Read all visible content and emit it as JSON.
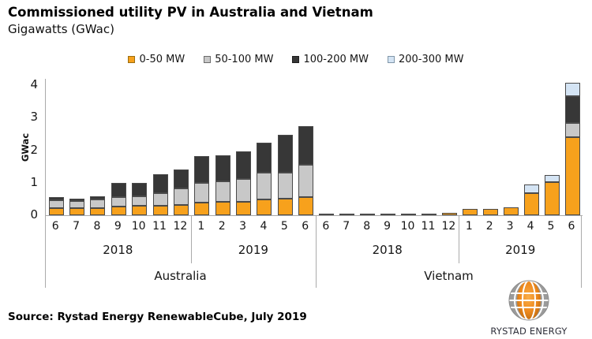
{
  "header": {
    "title": "Commissioned utility PV in Australia and Vietnam",
    "subtitle": "Gigawatts (GWac)"
  },
  "legend": {
    "items": [
      {
        "label": "0-50 MW",
        "color": "#F7A11C",
        "border": "#9a6d10"
      },
      {
        "label": "50-100 MW",
        "color": "#C8C8C8",
        "border": "#6b6b6b"
      },
      {
        "label": "100-200 MW",
        "color": "#373737",
        "border": "#1e1e1e"
      },
      {
        "label": "200-300 MW",
        "color": "#D4E4F4",
        "border": "#8096a8"
      }
    ]
  },
  "chart_data": {
    "type": "bar",
    "stacked": true,
    "title": "Commissioned utility PV in Australia and Vietnam",
    "ylabel": "GWac",
    "unit": "GWac",
    "ylim": [
      0,
      4
    ],
    "yticks": [
      0,
      1,
      2,
      3,
      4
    ],
    "grid": false,
    "legend_position": "top",
    "series": [
      "0-50 MW",
      "50-100 MW",
      "100-200 MW",
      "200-300 MW"
    ],
    "series_colors": [
      "#F7A11C",
      "#C8C8C8",
      "#373737",
      "#D4E4F4"
    ],
    "countries": [
      {
        "name": "Australia",
        "year_groups": [
          {
            "year": "2018",
            "months": [
              "6",
              "7",
              "8",
              "9",
              "10",
              "11",
              "12"
            ],
            "values": [
              [
                0.21,
                0.24,
                0.09,
                0
              ],
              [
                0.21,
                0.23,
                0.08,
                0
              ],
              [
                0.23,
                0.26,
                0.09,
                0
              ],
              [
                0.26,
                0.3,
                0.44,
                0
              ],
              [
                0.28,
                0.3,
                0.41,
                0
              ],
              [
                0.3,
                0.38,
                0.59,
                0
              ],
              [
                0.31,
                0.51,
                0.58,
                0
              ]
            ]
          },
          {
            "year": "2019",
            "months": [
              "1",
              "2",
              "3",
              "4",
              "5",
              "6"
            ],
            "values": [
              [
                0.38,
                0.61,
                0.82,
                0
              ],
              [
                0.4,
                0.64,
                0.81,
                0
              ],
              [
                0.41,
                0.7,
                0.86,
                0
              ],
              [
                0.48,
                0.82,
                0.92,
                0
              ],
              [
                0.5,
                0.81,
                1.17,
                0
              ],
              [
                0.56,
                0.99,
                1.19,
                0
              ]
            ]
          }
        ]
      },
      {
        "name": "Vietnam",
        "year_groups": [
          {
            "year": "2018",
            "months": [
              "6",
              "7",
              "8",
              "9",
              "10",
              "11",
              "12"
            ],
            "values": [
              [
                0.01,
                0,
                0,
                0
              ],
              [
                0.01,
                0,
                0,
                0
              ],
              [
                0.01,
                0,
                0,
                0
              ],
              [
                0.02,
                0,
                0,
                0
              ],
              [
                0.03,
                0,
                0,
                0
              ],
              [
                0.04,
                0,
                0,
                0
              ],
              [
                0.08,
                0,
                0,
                0
              ]
            ]
          },
          {
            "year": "2019",
            "months": [
              "1",
              "2",
              "3",
              "4",
              "5",
              "6"
            ],
            "values": [
              [
                0.2,
                0,
                0,
                0
              ],
              [
                0.19,
                0,
                0,
                0
              ],
              [
                0.25,
                0,
                0,
                0
              ],
              [
                0.68,
                0,
                0,
                0.26
              ],
              [
                1.02,
                0,
                0,
                0.23
              ],
              [
                2.4,
                0.44,
                0.83,
                0.41
              ]
            ]
          }
        ]
      }
    ]
  },
  "footer": {
    "source": "Source: Rystad Energy RenewableCube, July 2019",
    "logo_text": "RYSTAD ENERGY"
  }
}
